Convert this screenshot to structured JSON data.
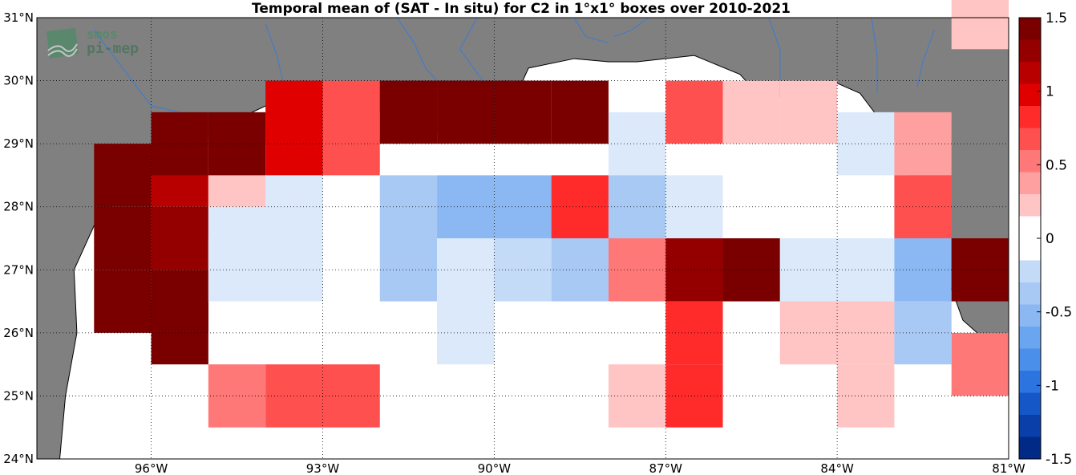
{
  "title": "Temporal mean of (SAT - In situ) for C2 in 1°x1° boxes over 2010-2021",
  "logo": {
    "line1": "smos",
    "line2": "pi-mep"
  },
  "chart_data": {
    "type": "heatmap",
    "lon_range": [
      -98,
      -81
    ],
    "lat_range": [
      24,
      31
    ],
    "x_ticks": [
      "96°W",
      "93°W",
      "90°W",
      "87°W",
      "84°W",
      "81°W"
    ],
    "x_tick_values": [
      -96,
      -93,
      -90,
      -87,
      -84,
      -81
    ],
    "y_ticks": [
      "24°N",
      "25°N",
      "26°N",
      "27°N",
      "28°N",
      "29°N",
      "30°N",
      "31°N"
    ],
    "y_tick_values": [
      24,
      25,
      26,
      27,
      28,
      29,
      30,
      31
    ],
    "grid": "dotted",
    "colorbar": {
      "range": [
        -1.5,
        1.5
      ],
      "ticks": [
        "1.5",
        "1",
        "0.5",
        "0",
        "-0.5",
        "-1",
        "-1.5"
      ],
      "tick_values": [
        1.5,
        1,
        0.5,
        0,
        -0.5,
        -1,
        -1.5
      ]
    },
    "cells": [
      {
        "lon": -96.5,
        "lat": 26.5,
        "value": 1.5
      },
      {
        "lon": -96.5,
        "lat": 27.5,
        "value": 1.5
      },
      {
        "lon": -96.5,
        "lat": 28.5,
        "value": 1.5
      },
      {
        "lon": -95.5,
        "lat": 26.5,
        "value": 1.5
      },
      {
        "lon": -95.5,
        "lat": 27.5,
        "value": 1.3
      },
      {
        "lon": -95.5,
        "lat": 28.5,
        "value": 1.1
      },
      {
        "lon": -95.5,
        "lat": 29.0,
        "value": 1.5
      },
      {
        "lon": -95.5,
        "lat": 26.0,
        "value": 1.5
      },
      {
        "lon": -94.5,
        "lat": 28.5,
        "value": 0.15
      },
      {
        "lon": -94.5,
        "lat": 27.5,
        "value": -0.1
      },
      {
        "lon": -94.5,
        "lat": 27.0,
        "value": -0.1
      },
      {
        "lon": -94.5,
        "lat": 29.0,
        "value": 1.5
      },
      {
        "lon": -94.5,
        "lat": 25.0,
        "value": 0.45
      },
      {
        "lon": -93.5,
        "lat": 29.5,
        "value": 0.9
      },
      {
        "lon": -93.5,
        "lat": 29.0,
        "value": 0.9
      },
      {
        "lon": -93.5,
        "lat": 28.0,
        "value": -0.1
      },
      {
        "lon": -93.5,
        "lat": 27.0,
        "value": -0.1
      },
      {
        "lon": -93.5,
        "lat": 25.0,
        "value": 0.7
      },
      {
        "lon": -92.5,
        "lat": 25.0,
        "value": 0.7
      },
      {
        "lon": -92.5,
        "lat": 29.0,
        "value": 0.6
      },
      {
        "lon": -92.5,
        "lat": 29.5,
        "value": 0.6
      },
      {
        "lon": -91.5,
        "lat": 29.5,
        "value": 1.5
      },
      {
        "lon": -91.5,
        "lat": 28.0,
        "value": -0.3
      },
      {
        "lon": -91.5,
        "lat": 27.0,
        "value": -0.3
      },
      {
        "lon": -90.5,
        "lat": 29.5,
        "value": 1.5
      },
      {
        "lon": -90.5,
        "lat": 28.0,
        "value": -0.45
      },
      {
        "lon": -90.5,
        "lat": 27.0,
        "value": -0.1
      },
      {
        "lon": -90.5,
        "lat": 26.0,
        "value": -0.1
      },
      {
        "lon": -89.5,
        "lat": 29.5,
        "value": 1.5
      },
      {
        "lon": -89.5,
        "lat": 28.0,
        "value": -0.45
      },
      {
        "lon": -89.5,
        "lat": 27.0,
        "value": -0.2
      },
      {
        "lon": -88.5,
        "lat": 29.5,
        "value": 1.5
      },
      {
        "lon": -88.5,
        "lat": 28.0,
        "value": 0.8
      },
      {
        "lon": -88.5,
        "lat": 27.0,
        "value": -0.3
      },
      {
        "lon": -87.5,
        "lat": 29.0,
        "value": -0.1
      },
      {
        "lon": -87.5,
        "lat": 28.0,
        "value": -0.35
      },
      {
        "lon": -87.5,
        "lat": 27.0,
        "value": 0.5
      },
      {
        "lon": -87.5,
        "lat": 25.0,
        "value": 0.15
      },
      {
        "lon": -86.5,
        "lat": 29.5,
        "value": 0.6
      },
      {
        "lon": -86.5,
        "lat": 28.0,
        "value": -0.1
      },
      {
        "lon": -86.5,
        "lat": 27.0,
        "value": 1.2
      },
      {
        "lon": -86.5,
        "lat": 26.0,
        "value": 0.8
      },
      {
        "lon": -86.5,
        "lat": 25.0,
        "value": 0.8
      },
      {
        "lon": -85.5,
        "lat": 29.5,
        "value": 0.25
      },
      {
        "lon": -85.5,
        "lat": 27.0,
        "value": 1.4
      },
      {
        "lon": -84.5,
        "lat": 27.0,
        "value": -0.1
      },
      {
        "lon": -84.5,
        "lat": 26.0,
        "value": 0.15
      },
      {
        "lon": -84.5,
        "lat": 29.5,
        "value": 0.25
      },
      {
        "lon": -83.5,
        "lat": 29.0,
        "value": -0.1
      },
      {
        "lon": -83.5,
        "lat": 27.0,
        "value": -0.1
      },
      {
        "lon": -83.5,
        "lat": 26.0,
        "value": 0.15
      },
      {
        "lon": -83.5,
        "lat": 25.0,
        "value": 0.15
      },
      {
        "lon": -82.5,
        "lat": 29.0,
        "value": 0.4
      },
      {
        "lon": -82.5,
        "lat": 28.0,
        "value": 0.6
      },
      {
        "lon": -82.5,
        "lat": 27.0,
        "value": -0.45
      },
      {
        "lon": -82.5,
        "lat": 26.0,
        "value": -0.3
      },
      {
        "lon": -81.5,
        "lat": 27.0,
        "value": 1.5
      },
      {
        "lon": -81.5,
        "lat": 25.5,
        "value": 0.5
      },
      {
        "lon": -81.5,
        "lat": 31.0,
        "value": 0.25
      }
    ],
    "colors": {
      "land": "#808080",
      "ocean": "#ffffff",
      "river": "#3a7bd5",
      "coast": "#000000"
    }
  }
}
